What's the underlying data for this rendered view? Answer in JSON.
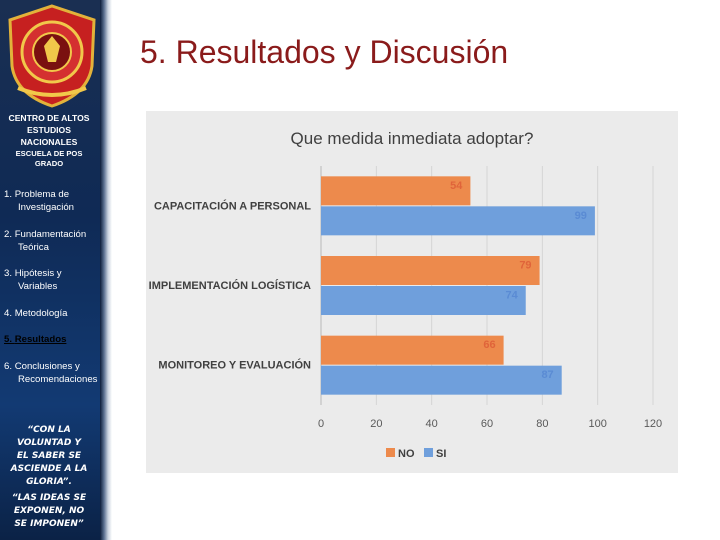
{
  "sidebar": {
    "institution": [
      "CENTRO DE ALTOS",
      "ESTUDIOS",
      "NACIONALES"
    ],
    "school": [
      "ESCUELA DE POS",
      "GRADO"
    ],
    "nav": [
      {
        "num": "1.",
        "lines": [
          "Problema de",
          "Investigación"
        ],
        "active": false
      },
      {
        "num": "2.",
        "lines": [
          "Fundamentación",
          "Teórica"
        ],
        "active": false
      },
      {
        "num": "3.",
        "lines": [
          "Hipótesis y",
          "Variables"
        ],
        "active": false
      },
      {
        "num": "4.",
        "lines": [
          "Metodología"
        ],
        "active": false
      },
      {
        "num": "5.",
        "lines": [
          "Resultados"
        ],
        "active": true
      },
      {
        "num": "6.",
        "lines": [
          "Conclusiones y",
          "Recomendaciones"
        ],
        "active": false
      }
    ],
    "quote1": [
      "“CON LA",
      "VOLUNTAD Y",
      "EL SABER SE",
      "ASCIENDE A LA",
      "GLORIA”."
    ],
    "quote2": [
      "“LAS IDEAS SE",
      "EXPONEN, NO",
      "SE IMPONEN”"
    ]
  },
  "slide": {
    "title": "5. Resultados y Discusión"
  },
  "chart_data": {
    "type": "bar",
    "orientation": "horizontal",
    "title": "Que medida inmediata adoptar?",
    "categories": [
      "CAPACITACIÓN A PERSONAL",
      "IMPLEMENTACIÓN LOGÍSTICA",
      "MONITOREO Y EVALUACIÓN"
    ],
    "series": [
      {
        "name": "NO",
        "color": "#ed8a4c",
        "values": [
          54,
          79,
          66
        ]
      },
      {
        "name": "SI",
        "color": "#6f9fdc",
        "values": [
          99,
          74,
          87
        ]
      }
    ],
    "xlim": [
      0,
      120
    ],
    "xticks": [
      0,
      20,
      40,
      60,
      80,
      100,
      120
    ],
    "grid": true,
    "legend": "bottom"
  }
}
